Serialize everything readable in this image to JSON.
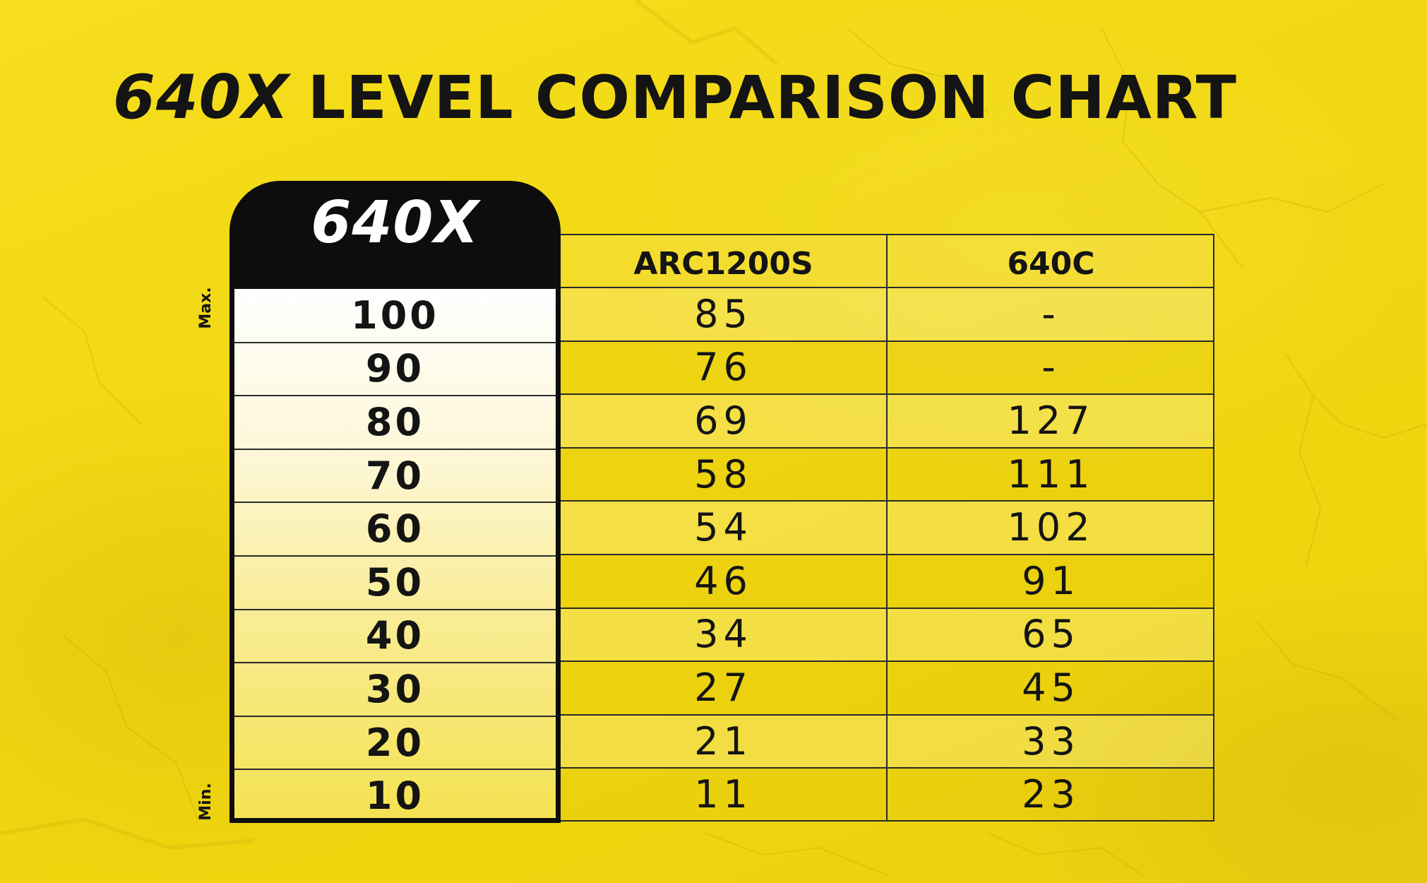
{
  "title": {
    "brand": "640X",
    "rest": "LEVEL COMPARISON CHART"
  },
  "axis": {
    "max_label": "Max.",
    "min_label": "Min."
  },
  "colors": {
    "background": "#f2d812",
    "header_tab": "#0d0d0d",
    "main_column_top": "#ffffff",
    "main_column_bottom": "#f4e251",
    "text": "#141414"
  },
  "chart_data": {
    "type": "table",
    "title": "640X LEVEL COMPARISON CHART",
    "columns": [
      "640X",
      "ARC1200S",
      "640C"
    ],
    "rows": [
      [
        "100",
        "85",
        "-"
      ],
      [
        "90",
        "76",
        "-"
      ],
      [
        "80",
        "69",
        "127"
      ],
      [
        "70",
        "58",
        "111"
      ],
      [
        "60",
        "54",
        "102"
      ],
      [
        "50",
        "46",
        "91"
      ],
      [
        "40",
        "34",
        "65"
      ],
      [
        "30",
        "27",
        "45"
      ],
      [
        "20",
        "21",
        "33"
      ],
      [
        "10",
        "11",
        "23"
      ]
    ]
  }
}
